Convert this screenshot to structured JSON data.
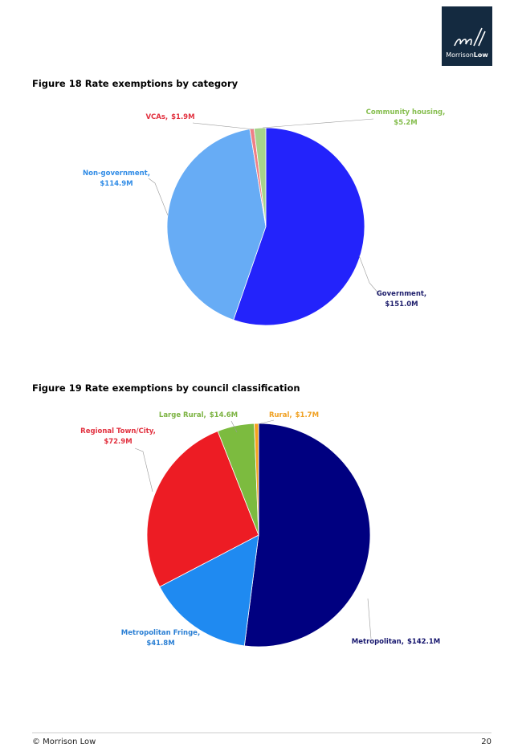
{
  "logo": {
    "text_1": "Morrison",
    "text_2": "Low"
  },
  "chart_data": [
    {
      "type": "pie",
      "title": "Figure 18  Rate exemptions by category",
      "categories": [
        "Government,",
        "Non-government,",
        "VCAs,",
        "Community housing,"
      ],
      "values": [
        151.0,
        114.9,
        1.9,
        5.2
      ],
      "value_labels": [
        "$151.0M",
        "$114.9M",
        "$1.9M",
        "$5.2M"
      ],
      "colors": [
        "#2323fb",
        "#67acf5",
        "#ef7f86",
        "#a6d38b"
      ],
      "label_colors": [
        "#1d1d6b",
        "#2f8be6",
        "#e2313f",
        "#86be4f"
      ]
    },
    {
      "type": "pie",
      "title": "Figure 19  Rate exemptions by council classification",
      "categories": [
        "Metropolitan,",
        "Metropolitan Fringe,",
        "Regional Town/City,",
        "Large Rural,",
        "Rural,"
      ],
      "values": [
        142.1,
        41.8,
        72.9,
        14.6,
        1.7
      ],
      "value_labels": [
        "$142.1M",
        "$41.8M",
        "$72.9M",
        "$14.6M",
        "$1.7M"
      ],
      "colors": [
        "#000080",
        "#1f8af1",
        "#ed1c24",
        "#7cbb3f",
        "#f5a31f"
      ],
      "label_colors": [
        "#16166e",
        "#2a7fd4",
        "#e2313f",
        "#7cb342",
        "#f0a020"
      ]
    }
  ],
  "footer": {
    "left": "© Morrison Low",
    "page": "20"
  }
}
